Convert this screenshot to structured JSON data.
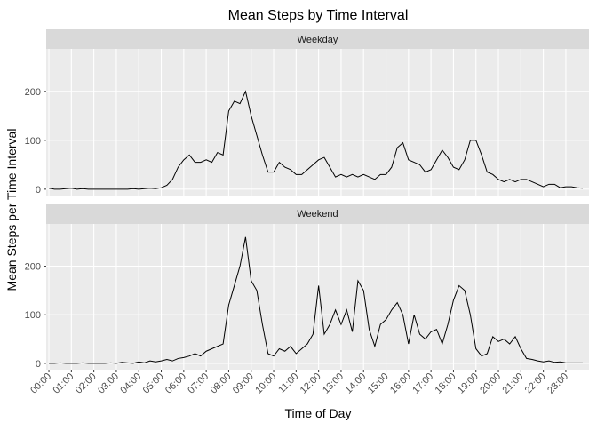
{
  "chart_data": {
    "type": "line",
    "title": "Mean Steps by Time Interval",
    "xlabel": "Time of Day",
    "ylabel": "Mean Steps per Time Interval",
    "color": "#000000",
    "grid": true,
    "xlim": [
      -0.12,
      24.03
    ],
    "ylim": [
      -13,
      287
    ],
    "yticks": [
      0,
      100,
      200
    ],
    "xticks": [
      {
        "value": 0,
        "label": "00:00"
      },
      {
        "value": 1,
        "label": "01:00"
      },
      {
        "value": 2,
        "label": "02:00"
      },
      {
        "value": 3,
        "label": "03:00"
      },
      {
        "value": 4,
        "label": "04:00"
      },
      {
        "value": 5,
        "label": "05:00"
      },
      {
        "value": 6,
        "label": "06:00"
      },
      {
        "value": 7,
        "label": "07:00"
      },
      {
        "value": 8,
        "label": "08:00"
      },
      {
        "value": 9,
        "label": "09:00"
      },
      {
        "value": 10,
        "label": "10:00"
      },
      {
        "value": 11,
        "label": "11:00"
      },
      {
        "value": 12,
        "label": "12:00"
      },
      {
        "value": 13,
        "label": "13:00"
      },
      {
        "value": 14,
        "label": "14:00"
      },
      {
        "value": 15,
        "label": "15:00"
      },
      {
        "value": 16,
        "label": "16:00"
      },
      {
        "value": 17,
        "label": "17:00"
      },
      {
        "value": 18,
        "label": "18:00"
      },
      {
        "value": 19,
        "label": "19:00"
      },
      {
        "value": 20,
        "label": "20:00"
      },
      {
        "value": 21,
        "label": "21:00"
      },
      {
        "value": 22,
        "label": "22:00"
      },
      {
        "value": 23,
        "label": "23:00"
      }
    ],
    "x": [
      0,
      0.25,
      0.5,
      0.75,
      1,
      1.25,
      1.5,
      1.75,
      2,
      2.25,
      2.5,
      2.75,
      3,
      3.25,
      3.5,
      3.75,
      4,
      4.25,
      4.5,
      4.75,
      5,
      5.25,
      5.5,
      5.75,
      6,
      6.25,
      6.5,
      6.75,
      7,
      7.25,
      7.5,
      7.75,
      8,
      8.25,
      8.5,
      8.75,
      9,
      9.25,
      9.5,
      9.75,
      10,
      10.25,
      10.5,
      10.75,
      11,
      11.25,
      11.5,
      11.75,
      12,
      12.25,
      12.5,
      12.75,
      13,
      13.25,
      13.5,
      13.75,
      14,
      14.25,
      14.5,
      14.75,
      15,
      15.25,
      15.5,
      15.75,
      16,
      16.25,
      16.5,
      16.75,
      17,
      17.25,
      17.5,
      17.75,
      18,
      18.25,
      18.5,
      18.75,
      19,
      19.25,
      19.5,
      19.75,
      20,
      20.25,
      20.5,
      20.75,
      21,
      21.25,
      21.5,
      21.75,
      22,
      22.25,
      22.5,
      22.75,
      23,
      23.25,
      23.5,
      23.75
    ],
    "facets": [
      {
        "name": "Weekday",
        "values": [
          2,
          0,
          0,
          1,
          2,
          0,
          1,
          0,
          0,
          0,
          0,
          0,
          0,
          0,
          0,
          1,
          0,
          1,
          2,
          1,
          3,
          8,
          20,
          45,
          60,
          70,
          55,
          55,
          60,
          55,
          75,
          70,
          160,
          180,
          175,
          200,
          150,
          110,
          70,
          35,
          35,
          55,
          45,
          40,
          30,
          30,
          40,
          50,
          60,
          65,
          45,
          25,
          30,
          25,
          30,
          25,
          30,
          25,
          20,
          30,
          30,
          45,
          85,
          95,
          60,
          55,
          50,
          35,
          40,
          60,
          80,
          65,
          45,
          40,
          60,
          100,
          100,
          70,
          35,
          30,
          20,
          15,
          20,
          15,
          20,
          20,
          15,
          10,
          5,
          10,
          10,
          3,
          5,
          5,
          3,
          2
        ]
      },
      {
        "name": "Weekend",
        "values": [
          0,
          0,
          1,
          0,
          0,
          0,
          1,
          0,
          0,
          0,
          0,
          1,
          0,
          2,
          1,
          0,
          3,
          1,
          5,
          3,
          5,
          8,
          5,
          10,
          12,
          15,
          20,
          15,
          25,
          30,
          35,
          40,
          120,
          160,
          200,
          260,
          170,
          150,
          80,
          20,
          15,
          30,
          25,
          35,
          20,
          30,
          40,
          60,
          160,
          60,
          80,
          110,
          80,
          110,
          65,
          170,
          150,
          70,
          35,
          80,
          90,
          110,
          125,
          100,
          40,
          100,
          60,
          50,
          65,
          70,
          40,
          80,
          130,
          160,
          150,
          100,
          30,
          15,
          20,
          55,
          45,
          50,
          40,
          55,
          30,
          10,
          8,
          5,
          3,
          5,
          2,
          3,
          1,
          1,
          1,
          1
        ]
      }
    ]
  }
}
